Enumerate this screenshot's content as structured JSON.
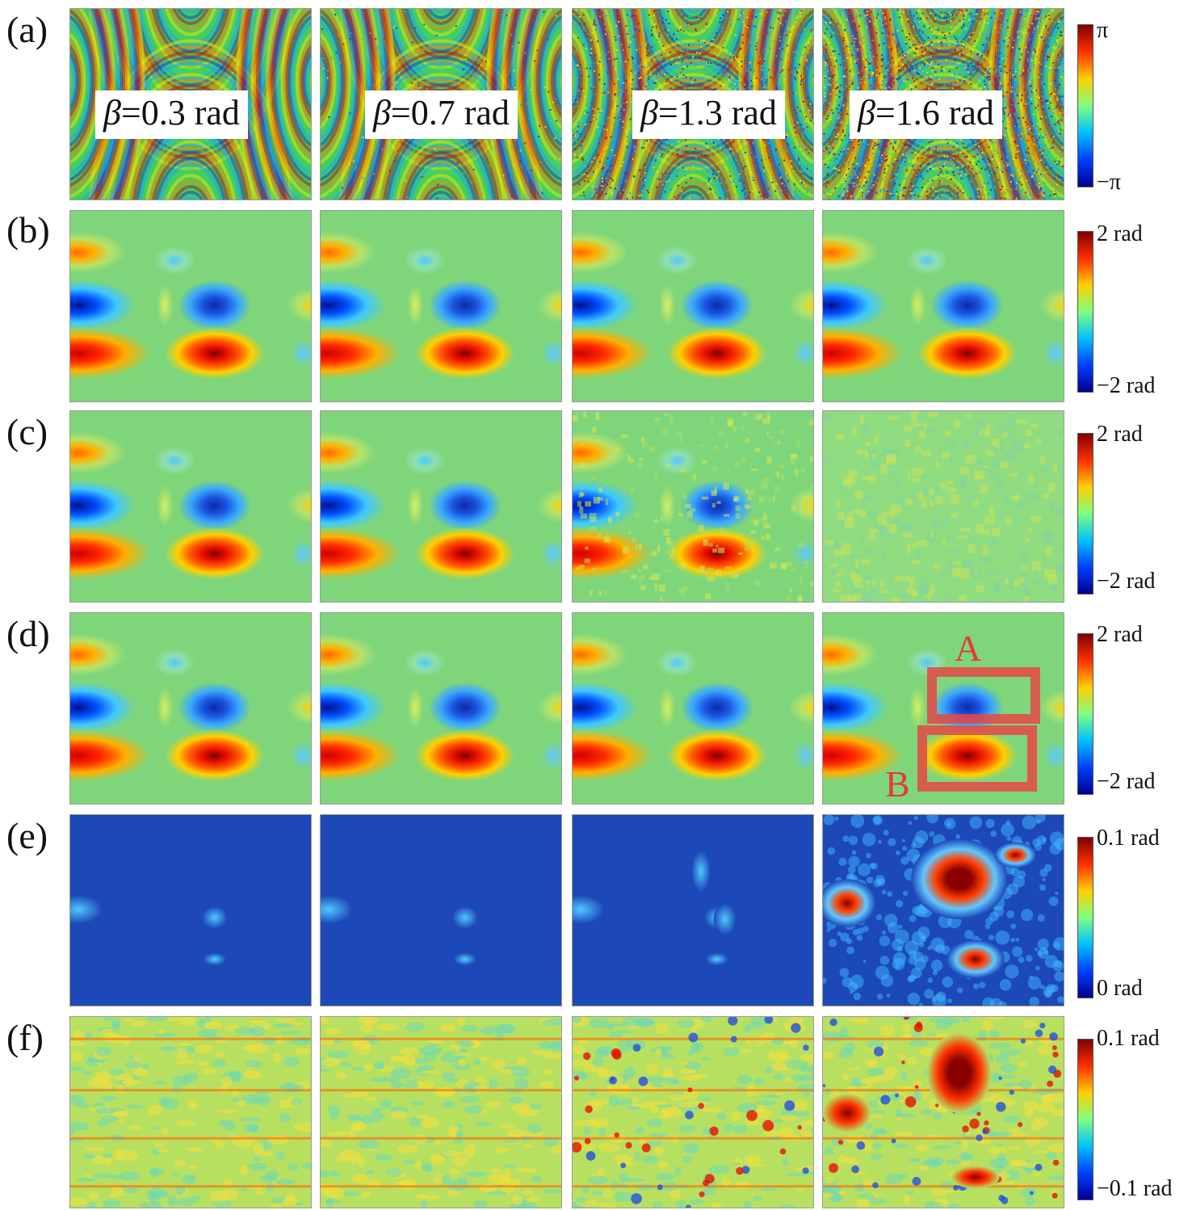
{
  "rows": [
    {
      "id": "a",
      "label": "(a)",
      "kind": "wrapped",
      "cbar_top": "π",
      "cbar_bottom": "−π"
    },
    {
      "id": "b",
      "label": "(b)",
      "kind": "smooth",
      "cbar_top": "2 rad",
      "cbar_bottom": "−2 rad"
    },
    {
      "id": "c",
      "label": "(c)",
      "kind": "noisy",
      "cbar_top": "2 rad",
      "cbar_bottom": "−2 rad"
    },
    {
      "id": "d",
      "label": "(d)",
      "kind": "smooth",
      "cbar_top": "2 rad",
      "cbar_bottom": "−2 rad"
    },
    {
      "id": "e",
      "label": "(e)",
      "kind": "error",
      "cbar_top": "0.1 rad",
      "cbar_bottom": "0 rad"
    },
    {
      "id": "f",
      "label": "(f)",
      "kind": "residual",
      "cbar_top": "0.1 rad",
      "cbar_bottom": "−0.1 rad"
    }
  ],
  "beta_symbol": "β",
  "beta_values": [
    "=0.3 rad",
    "=0.7 rad",
    "=1.3 rad",
    "=1.6 rad"
  ],
  "roi_labels": {
    "a": "A",
    "b": "B"
  },
  "colormap": [
    "#00008f",
    "#0040ff",
    "#00c0ff",
    "#7fff7f",
    "#ffcf00",
    "#ff3000",
    "#800000"
  ],
  "roi_color": "#e23a36"
}
